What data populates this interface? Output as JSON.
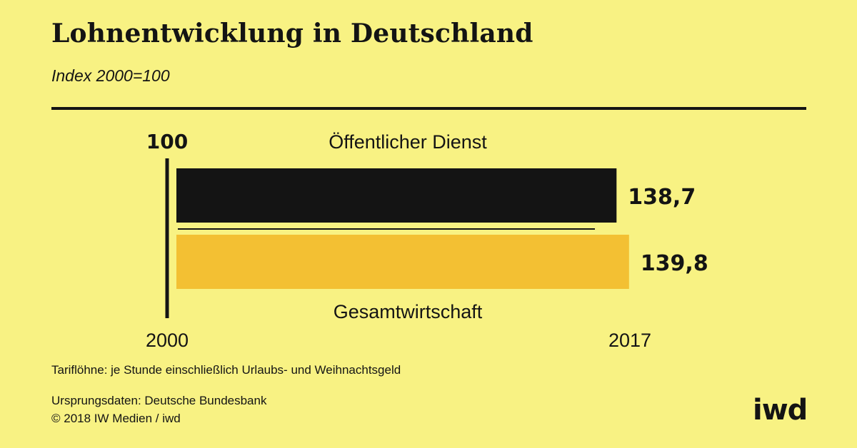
{
  "title": "Lohnentwicklung in Deutschland",
  "subtitle": "Index 2000=100",
  "chart_data": {
    "type": "bar",
    "orientation": "horizontal",
    "baseline_label": "100",
    "baseline_value": 100,
    "x_start_label": "2000",
    "x_end_label": "2017",
    "series": [
      {
        "name": "Öffentlicher Dienst",
        "value": 138.7,
        "value_label": "138,7",
        "color": "#141414"
      },
      {
        "name": "Gesamtwirtschaft",
        "value": 139.8,
        "value_label": "139,8",
        "color": "#f3c033"
      }
    ]
  },
  "notes": {
    "definition": "Tariflöhne: je Stunde einschließlich Urlaubs- und Weihnachtsgeld",
    "source": "Ursprungsdaten: Deutsche Bundesbank",
    "copyright": "© 2018 IW Medien / iwd"
  },
  "logo": "iwd"
}
